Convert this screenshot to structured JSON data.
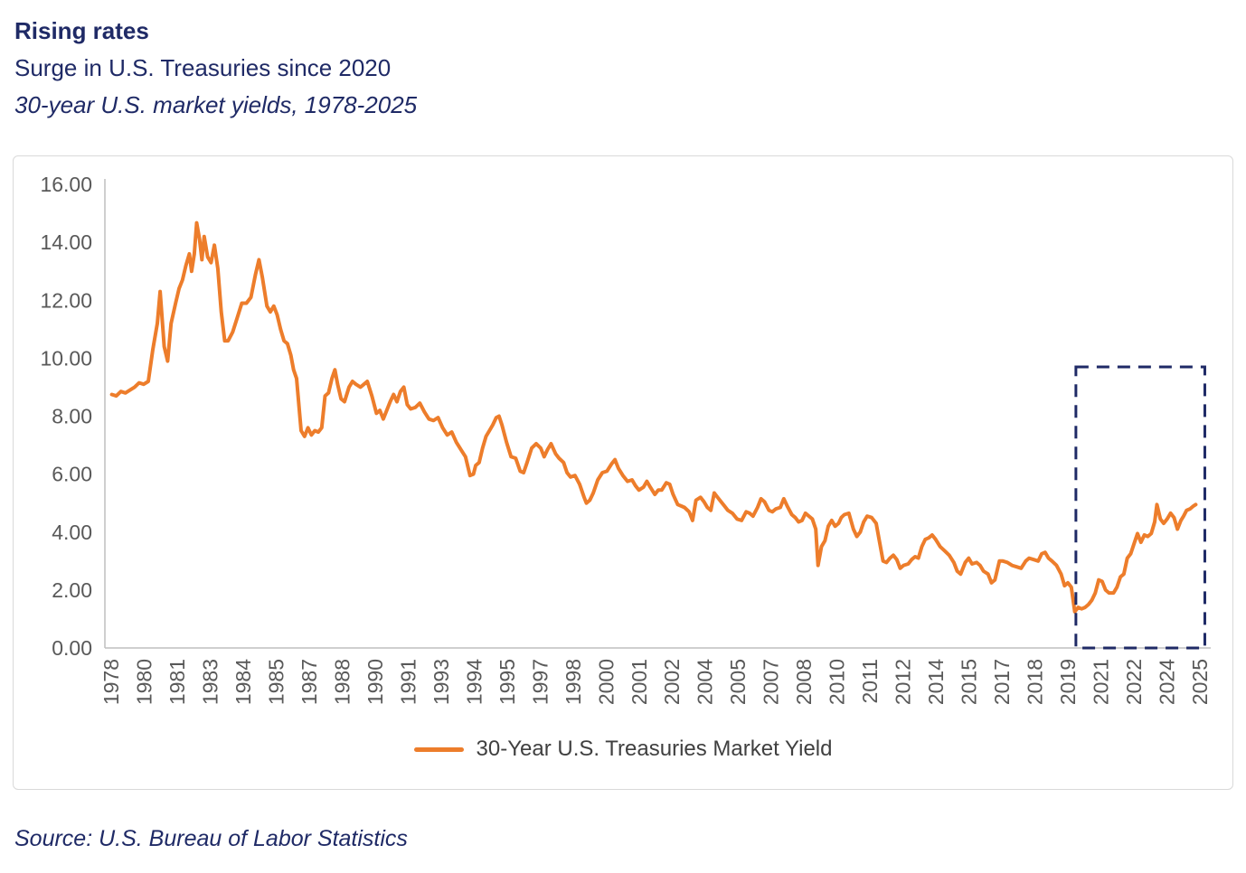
{
  "header": {
    "title": "Rising rates",
    "subtitle": "Surge in U.S. Treasuries since 2020",
    "description": "30-year U.S. market yields, 1978-2025"
  },
  "source": "Source: U.S. Bureau of Labor Statistics",
  "colors": {
    "navy": "#1F2A66",
    "line_orange": "#ED7D2B",
    "axis_text": "#595959",
    "axis_line": "#BFBFBF",
    "chart_border": "#D9D9D9",
    "legend_text": "#404040"
  },
  "chart_data": {
    "type": "line",
    "title": "Rising rates",
    "subtitle": "Surge in U.S. Treasuries since 2020",
    "xlabel": "",
    "ylabel": "",
    "grid": false,
    "xlim": [
      1977.7,
      2026.0
    ],
    "ylim": [
      0,
      16
    ],
    "y_tick_labels": [
      "16.00",
      "14.00",
      "12.00",
      "10.00",
      "8.00",
      "6.00",
      "4.00",
      "2.00",
      "0.00"
    ],
    "x_tick_labels": [
      "1978",
      "1980",
      "1981",
      "1983",
      "1984",
      "1985",
      "1987",
      "1988",
      "1990",
      "1991",
      "1993",
      "1994",
      "1995",
      "1997",
      "1998",
      "2000",
      "2001",
      "2002",
      "2004",
      "2005",
      "2007",
      "2008",
      "2010",
      "2011",
      "2012",
      "2014",
      "2015",
      "2017",
      "2018",
      "2019",
      "2021",
      "2022",
      "2024",
      "2025"
    ],
    "legend": {
      "position": "bottom"
    },
    "highlight_box": {
      "x0": 2020.25,
      "x1": 2025.9,
      "y0": 0,
      "y1": 9.7,
      "style": "dashed",
      "color": "#1F2A66",
      "note": "highlights surge since 2020"
    },
    "series": [
      {
        "name": "30-Year U.S. Treasuries Market Yield",
        "color": "#ED7D2B",
        "points": [
          [
            1978.0,
            8.75
          ],
          [
            1978.2,
            8.7
          ],
          [
            1978.4,
            8.85
          ],
          [
            1978.6,
            8.8
          ],
          [
            1978.8,
            8.9
          ],
          [
            1979.0,
            9.0
          ],
          [
            1979.2,
            9.15
          ],
          [
            1979.4,
            9.1
          ],
          [
            1979.6,
            9.2
          ],
          [
            1979.8,
            10.3
          ],
          [
            1980.0,
            11.2
          ],
          [
            1980.12,
            12.3
          ],
          [
            1980.3,
            10.4
          ],
          [
            1980.45,
            9.9
          ],
          [
            1980.6,
            11.2
          ],
          [
            1980.8,
            11.9
          ],
          [
            1980.95,
            12.4
          ],
          [
            1981.1,
            12.7
          ],
          [
            1981.25,
            13.2
          ],
          [
            1981.4,
            13.6
          ],
          [
            1981.5,
            13.0
          ],
          [
            1981.62,
            13.6
          ],
          [
            1981.72,
            14.67
          ],
          [
            1981.85,
            14.1
          ],
          [
            1981.95,
            13.4
          ],
          [
            1982.05,
            14.2
          ],
          [
            1982.2,
            13.5
          ],
          [
            1982.35,
            13.3
          ],
          [
            1982.5,
            13.9
          ],
          [
            1982.65,
            13.1
          ],
          [
            1982.8,
            11.6
          ],
          [
            1982.95,
            10.6
          ],
          [
            1983.1,
            10.6
          ],
          [
            1983.3,
            10.9
          ],
          [
            1983.5,
            11.4
          ],
          [
            1983.7,
            11.9
          ],
          [
            1983.9,
            11.9
          ],
          [
            1984.1,
            12.1
          ],
          [
            1984.3,
            12.9
          ],
          [
            1984.45,
            13.4
          ],
          [
            1984.6,
            12.8
          ],
          [
            1984.8,
            11.8
          ],
          [
            1984.95,
            11.6
          ],
          [
            1985.1,
            11.8
          ],
          [
            1985.25,
            11.5
          ],
          [
            1985.4,
            11.0
          ],
          [
            1985.55,
            10.6
          ],
          [
            1985.7,
            10.5
          ],
          [
            1985.85,
            10.1
          ],
          [
            1985.97,
            9.6
          ],
          [
            1986.1,
            9.3
          ],
          [
            1986.3,
            7.5
          ],
          [
            1986.45,
            7.3
          ],
          [
            1986.6,
            7.6
          ],
          [
            1986.75,
            7.35
          ],
          [
            1986.9,
            7.5
          ],
          [
            1987.05,
            7.45
          ],
          [
            1987.2,
            7.6
          ],
          [
            1987.35,
            8.7
          ],
          [
            1987.5,
            8.8
          ],
          [
            1987.65,
            9.3
          ],
          [
            1987.78,
            9.6
          ],
          [
            1987.9,
            9.1
          ],
          [
            1988.05,
            8.6
          ],
          [
            1988.2,
            8.5
          ],
          [
            1988.4,
            9.0
          ],
          [
            1988.55,
            9.2
          ],
          [
            1988.7,
            9.1
          ],
          [
            1988.9,
            9.0
          ],
          [
            1989.05,
            9.1
          ],
          [
            1989.2,
            9.2
          ],
          [
            1989.4,
            8.7
          ],
          [
            1989.6,
            8.1
          ],
          [
            1989.75,
            8.2
          ],
          [
            1989.9,
            7.9
          ],
          [
            1990.05,
            8.2
          ],
          [
            1990.2,
            8.5
          ],
          [
            1990.35,
            8.75
          ],
          [
            1990.5,
            8.5
          ],
          [
            1990.65,
            8.85
          ],
          [
            1990.8,
            9.0
          ],
          [
            1990.95,
            8.4
          ],
          [
            1991.1,
            8.25
          ],
          [
            1991.3,
            8.3
          ],
          [
            1991.5,
            8.45
          ],
          [
            1991.7,
            8.15
          ],
          [
            1991.9,
            7.9
          ],
          [
            1992.1,
            7.85
          ],
          [
            1992.3,
            7.95
          ],
          [
            1992.5,
            7.6
          ],
          [
            1992.7,
            7.35
          ],
          [
            1992.9,
            7.45
          ],
          [
            1993.1,
            7.1
          ],
          [
            1993.3,
            6.85
          ],
          [
            1993.5,
            6.6
          ],
          [
            1993.7,
            5.95
          ],
          [
            1993.85,
            6.0
          ],
          [
            1993.95,
            6.3
          ],
          [
            1994.1,
            6.4
          ],
          [
            1994.25,
            6.9
          ],
          [
            1994.4,
            7.3
          ],
          [
            1994.55,
            7.5
          ],
          [
            1994.7,
            7.7
          ],
          [
            1994.85,
            7.95
          ],
          [
            1994.97,
            8.0
          ],
          [
            1995.1,
            7.7
          ],
          [
            1995.3,
            7.1
          ],
          [
            1995.5,
            6.6
          ],
          [
            1995.7,
            6.55
          ],
          [
            1995.9,
            6.1
          ],
          [
            1996.05,
            6.05
          ],
          [
            1996.2,
            6.4
          ],
          [
            1996.4,
            6.9
          ],
          [
            1996.6,
            7.05
          ],
          [
            1996.8,
            6.9
          ],
          [
            1996.95,
            6.6
          ],
          [
            1997.1,
            6.85
          ],
          [
            1997.25,
            7.05
          ],
          [
            1997.45,
            6.7
          ],
          [
            1997.6,
            6.55
          ],
          [
            1997.8,
            6.4
          ],
          [
            1997.95,
            6.05
          ],
          [
            1998.1,
            5.9
          ],
          [
            1998.3,
            5.95
          ],
          [
            1998.5,
            5.65
          ],
          [
            1998.7,
            5.2
          ],
          [
            1998.8,
            5.0
          ],
          [
            1998.95,
            5.1
          ],
          [
            1999.1,
            5.35
          ],
          [
            1999.3,
            5.8
          ],
          [
            1999.5,
            6.05
          ],
          [
            1999.7,
            6.1
          ],
          [
            1999.9,
            6.35
          ],
          [
            2000.05,
            6.5
          ],
          [
            2000.2,
            6.2
          ],
          [
            2000.4,
            5.95
          ],
          [
            2000.6,
            5.75
          ],
          [
            2000.8,
            5.8
          ],
          [
            2000.95,
            5.6
          ],
          [
            2001.1,
            5.45
          ],
          [
            2001.3,
            5.55
          ],
          [
            2001.45,
            5.75
          ],
          [
            2001.6,
            5.55
          ],
          [
            2001.8,
            5.3
          ],
          [
            2001.95,
            5.45
          ],
          [
            2002.1,
            5.45
          ],
          [
            2002.3,
            5.7
          ],
          [
            2002.45,
            5.65
          ],
          [
            2002.6,
            5.3
          ],
          [
            2002.8,
            4.95
          ],
          [
            2002.95,
            4.9
          ],
          [
            2003.1,
            4.85
          ],
          [
            2003.3,
            4.7
          ],
          [
            2003.45,
            4.4
          ],
          [
            2003.6,
            5.1
          ],
          [
            2003.8,
            5.2
          ],
          [
            2003.95,
            5.05
          ],
          [
            2004.1,
            4.85
          ],
          [
            2004.25,
            4.75
          ],
          [
            2004.4,
            5.35
          ],
          [
            2004.55,
            5.2
          ],
          [
            2004.7,
            5.05
          ],
          [
            2004.85,
            4.9
          ],
          [
            2005.0,
            4.75
          ],
          [
            2005.2,
            4.65
          ],
          [
            2005.4,
            4.45
          ],
          [
            2005.6,
            4.4
          ],
          [
            2005.8,
            4.7
          ],
          [
            2005.95,
            4.65
          ],
          [
            2006.1,
            4.55
          ],
          [
            2006.3,
            4.85
          ],
          [
            2006.45,
            5.15
          ],
          [
            2006.6,
            5.05
          ],
          [
            2006.8,
            4.75
          ],
          [
            2006.95,
            4.7
          ],
          [
            2007.1,
            4.8
          ],
          [
            2007.3,
            4.85
          ],
          [
            2007.45,
            5.15
          ],
          [
            2007.6,
            4.9
          ],
          [
            2007.8,
            4.6
          ],
          [
            2007.95,
            4.5
          ],
          [
            2008.1,
            4.35
          ],
          [
            2008.25,
            4.4
          ],
          [
            2008.4,
            4.65
          ],
          [
            2008.55,
            4.55
          ],
          [
            2008.7,
            4.45
          ],
          [
            2008.85,
            4.1
          ],
          [
            2008.95,
            2.85
          ],
          [
            2009.1,
            3.5
          ],
          [
            2009.25,
            3.7
          ],
          [
            2009.4,
            4.2
          ],
          [
            2009.55,
            4.4
          ],
          [
            2009.7,
            4.2
          ],
          [
            2009.85,
            4.3
          ],
          [
            2009.97,
            4.5
          ],
          [
            2010.1,
            4.6
          ],
          [
            2010.3,
            4.65
          ],
          [
            2010.5,
            4.1
          ],
          [
            2010.65,
            3.85
          ],
          [
            2010.8,
            4.0
          ],
          [
            2010.95,
            4.35
          ],
          [
            2011.1,
            4.55
          ],
          [
            2011.3,
            4.5
          ],
          [
            2011.5,
            4.3
          ],
          [
            2011.65,
            3.65
          ],
          [
            2011.8,
            3.0
          ],
          [
            2011.95,
            2.95
          ],
          [
            2012.1,
            3.1
          ],
          [
            2012.25,
            3.2
          ],
          [
            2012.4,
            3.05
          ],
          [
            2012.55,
            2.75
          ],
          [
            2012.7,
            2.85
          ],
          [
            2012.9,
            2.9
          ],
          [
            2013.05,
            3.05
          ],
          [
            2013.2,
            3.15
          ],
          [
            2013.35,
            3.1
          ],
          [
            2013.5,
            3.5
          ],
          [
            2013.65,
            3.75
          ],
          [
            2013.8,
            3.8
          ],
          [
            2013.95,
            3.9
          ],
          [
            2014.1,
            3.75
          ],
          [
            2014.3,
            3.5
          ],
          [
            2014.5,
            3.35
          ],
          [
            2014.7,
            3.2
          ],
          [
            2014.9,
            2.95
          ],
          [
            2015.05,
            2.65
          ],
          [
            2015.2,
            2.55
          ],
          [
            2015.4,
            2.95
          ],
          [
            2015.55,
            3.1
          ],
          [
            2015.7,
            2.9
          ],
          [
            2015.9,
            2.95
          ],
          [
            2016.05,
            2.85
          ],
          [
            2016.2,
            2.65
          ],
          [
            2016.4,
            2.55
          ],
          [
            2016.55,
            2.25
          ],
          [
            2016.7,
            2.35
          ],
          [
            2016.9,
            3.0
          ],
          [
            2017.05,
            3.0
          ],
          [
            2017.25,
            2.95
          ],
          [
            2017.45,
            2.85
          ],
          [
            2017.65,
            2.8
          ],
          [
            2017.85,
            2.75
          ],
          [
            2018.05,
            3.0
          ],
          [
            2018.2,
            3.1
          ],
          [
            2018.4,
            3.05
          ],
          [
            2018.6,
            3.0
          ],
          [
            2018.75,
            3.25
          ],
          [
            2018.9,
            3.3
          ],
          [
            2019.05,
            3.1
          ],
          [
            2019.2,
            3.0
          ],
          [
            2019.4,
            2.85
          ],
          [
            2019.6,
            2.55
          ],
          [
            2019.75,
            2.15
          ],
          [
            2019.9,
            2.25
          ],
          [
            2020.05,
            2.1
          ],
          [
            2020.2,
            1.25
          ],
          [
            2020.35,
            1.4
          ],
          [
            2020.5,
            1.35
          ],
          [
            2020.65,
            1.4
          ],
          [
            2020.8,
            1.5
          ],
          [
            2020.95,
            1.65
          ],
          [
            2021.1,
            1.9
          ],
          [
            2021.25,
            2.35
          ],
          [
            2021.4,
            2.3
          ],
          [
            2021.55,
            2.0
          ],
          [
            2021.7,
            1.9
          ],
          [
            2021.9,
            1.9
          ],
          [
            2022.05,
            2.1
          ],
          [
            2022.2,
            2.45
          ],
          [
            2022.35,
            2.55
          ],
          [
            2022.5,
            3.1
          ],
          [
            2022.65,
            3.25
          ],
          [
            2022.8,
            3.6
          ],
          [
            2022.95,
            3.95
          ],
          [
            2023.1,
            3.65
          ],
          [
            2023.25,
            3.9
          ],
          [
            2023.4,
            3.85
          ],
          [
            2023.55,
            3.95
          ],
          [
            2023.7,
            4.35
          ],
          [
            2023.8,
            4.95
          ],
          [
            2023.95,
            4.45
          ],
          [
            2024.1,
            4.3
          ],
          [
            2024.25,
            4.45
          ],
          [
            2024.4,
            4.65
          ],
          [
            2024.55,
            4.5
          ],
          [
            2024.7,
            4.1
          ],
          [
            2024.85,
            4.4
          ],
          [
            2024.97,
            4.55
          ],
          [
            2025.1,
            4.75
          ],
          [
            2025.25,
            4.8
          ],
          [
            2025.4,
            4.9
          ],
          [
            2025.5,
            4.95
          ]
        ]
      }
    ]
  }
}
